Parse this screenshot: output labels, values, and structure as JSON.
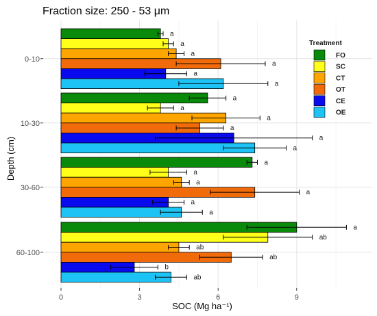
{
  "chart_data": {
    "type": "bar",
    "orientation": "horizontal",
    "title": "Fraction size: 250 - 53 μm",
    "xlabel": "SOC (Mg ha⁻¹)",
    "ylabel": "Depth (cm)",
    "xlim": [
      0,
      11.5
    ],
    "xticks": [
      "0",
      "3",
      "6",
      "9"
    ],
    "grid": true,
    "legend": {
      "title": "Treatment",
      "position": "top-right"
    },
    "categories": [
      "0-10",
      "10-30",
      "30-60",
      "60-100"
    ],
    "series": [
      {
        "name": "FO",
        "color": "#0a8a0a",
        "values": [
          3.8,
          5.6,
          7.3,
          9.0
        ],
        "errors": [
          0.1,
          0.7,
          0.2,
          1.9
        ],
        "letters": [
          "a",
          "a",
          "a",
          "a"
        ]
      },
      {
        "name": "SC",
        "color": "#ffff1a",
        "values": [
          4.1,
          3.8,
          4.1,
          7.9
        ],
        "errors": [
          0.2,
          0.5,
          0.7,
          1.7
        ],
        "letters": [
          "a",
          "a",
          "a",
          "ab"
        ]
      },
      {
        "name": "CT",
        "color": "#ffa500",
        "values": [
          4.4,
          6.3,
          4.6,
          4.5
        ],
        "errors": [
          0.3,
          1.3,
          0.3,
          0.4
        ],
        "letters": [
          "a",
          "a",
          "a",
          "ab"
        ]
      },
      {
        "name": "OT",
        "color": "#f26b0a",
        "values": [
          6.1,
          5.3,
          7.4,
          6.5
        ],
        "errors": [
          1.7,
          0.9,
          1.7,
          1.2
        ],
        "letters": [
          "a",
          "a",
          "a",
          "ab"
        ]
      },
      {
        "name": "CE",
        "color": "#0a0aee",
        "values": [
          4.0,
          6.6,
          4.1,
          2.8
        ],
        "errors": [
          0.8,
          3.0,
          0.6,
          0.9
        ],
        "letters": [
          "a",
          "a",
          "a",
          "b"
        ]
      },
      {
        "name": "OE",
        "color": "#1ec3f5",
        "values": [
          6.2,
          7.4,
          4.6,
          4.2
        ],
        "errors": [
          1.7,
          1.2,
          0.8,
          0.6
        ],
        "letters": [
          "a",
          "a",
          "a",
          "ab"
        ]
      }
    ]
  }
}
